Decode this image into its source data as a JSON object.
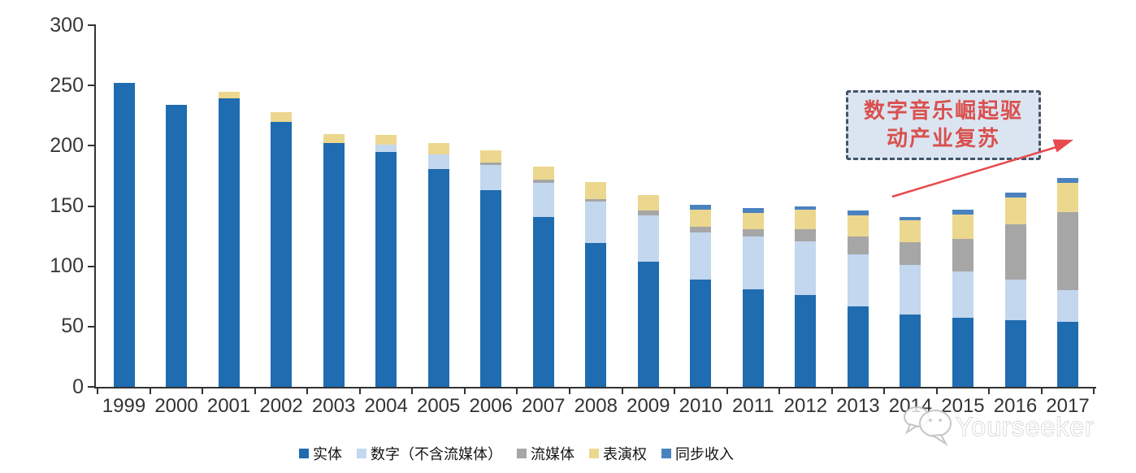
{
  "watermark": {
    "text": "Yourseeker",
    "icon": "chat-bubbles-icon"
  },
  "annotation": {
    "line1": "数字音乐崛起驱",
    "line2": "动产业复苏",
    "box_fill": "#dbe5f1",
    "border_color": "#44546a",
    "text_color": "#d9504e",
    "arrow_color": "#e84a4d"
  },
  "chart_data": {
    "type": "bar",
    "stacked": true,
    "title": "",
    "xlabel": "",
    "ylabel": "",
    "ylim": [
      0,
      300
    ],
    "yticks": [
      0,
      50,
      100,
      150,
      200,
      250,
      300
    ],
    "grid": false,
    "legend_position": "bottom",
    "categories": [
      "1999",
      "2000",
      "2001",
      "2002",
      "2003",
      "2004",
      "2005",
      "2006",
      "2007",
      "2008",
      "2009",
      "2010",
      "2011",
      "2012",
      "2013",
      "2014",
      "2015",
      "2016",
      "2017"
    ],
    "series": [
      {
        "name": "实体",
        "key": "physical",
        "color": "#1f6cb0",
        "values": [
          252,
          234,
          239,
          220,
          202,
          195,
          181,
          163,
          141,
          119,
          104,
          89,
          81,
          76,
          67,
          60,
          57,
          55,
          54
        ]
      },
      {
        "name": "数字（不含流媒体）",
        "key": "digital-excl-streaming",
        "color": "#c3d7ee",
        "values": [
          0,
          0,
          0,
          0,
          0,
          6,
          12,
          21,
          28,
          35,
          38,
          39,
          44,
          45,
          43,
          41,
          39,
          34,
          26
        ]
      },
      {
        "name": "流媒体",
        "key": "streaming",
        "color": "#a6a6a6",
        "values": [
          0,
          0,
          0,
          0,
          0,
          0,
          0,
          2,
          3,
          2,
          4,
          5,
          6,
          10,
          15,
          19,
          27,
          46,
          65
        ]
      },
      {
        "name": "表演权",
        "key": "performance-rights",
        "color": "#ecd78f",
        "values": [
          0,
          0,
          6,
          8,
          8,
          8,
          9,
          10,
          11,
          14,
          13,
          14,
          13,
          16,
          17,
          18,
          20,
          22,
          24
        ]
      },
      {
        "name": "同步收入",
        "key": "sync-revenue",
        "color": "#4a82c0",
        "values": [
          0,
          0,
          0,
          0,
          0,
          0,
          0,
          0,
          0,
          0,
          0,
          4,
          4,
          3,
          4,
          3,
          4,
          4,
          4
        ]
      }
    ]
  }
}
